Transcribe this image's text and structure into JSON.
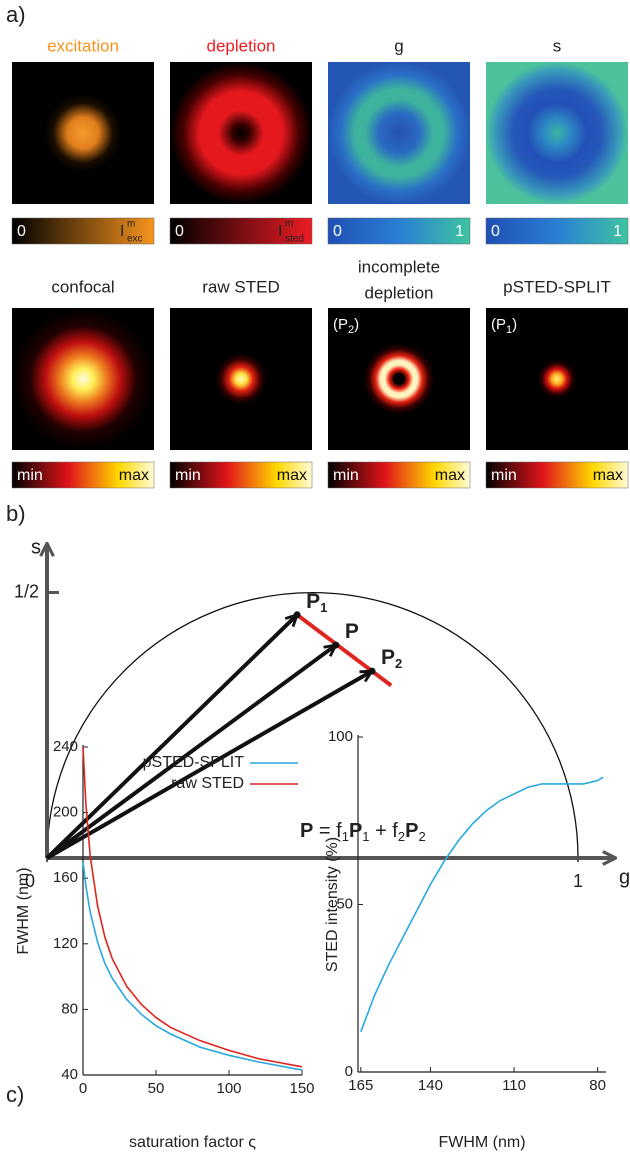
{
  "panel_a": {
    "label": "a)",
    "maps": [
      {
        "title": "excitation",
        "min": 0,
        "max": {
          "base": "I",
          "sup": "m",
          "sub": "exc"
        }
      },
      {
        "title": "depletion",
        "min": 0,
        "max": {
          "base": "I",
          "sup": "m",
          "sub": "sted"
        }
      },
      {
        "title": "g",
        "min": 0,
        "max": 1
      },
      {
        "title": "s",
        "min": 0,
        "max": 1
      }
    ],
    "images": [
      {
        "title": [
          "confocal"
        ],
        "min": "min",
        "max": "max"
      },
      {
        "title": [
          "raw STED"
        ],
        "min": "min",
        "max": "max"
      },
      {
        "title": [
          "incomplete",
          "depletion"
        ],
        "tag": {
          "open": "(P",
          "sub": "2",
          "close": ")"
        },
        "min": "min",
        "max": "max"
      },
      {
        "title": [
          "pSTED-SPLIT"
        ],
        "tag": {
          "open": "(P",
          "sub": "1",
          "close": ")"
        },
        "min": "min",
        "max": "max"
      }
    ]
  },
  "panel_b": {
    "label": "b)",
    "x_label": "g",
    "y_label": "s",
    "xticks": [
      0,
      1
    ],
    "yticks": [
      {
        "value": 0.5,
        "label": "1/2"
      }
    ],
    "points": [
      {
        "name": "P",
        "sub": "1",
        "g": 0.471,
        "s": 0.458
      },
      {
        "name": "P",
        "g": 0.544,
        "s": 0.401
      },
      {
        "name": "P",
        "sub": "2",
        "g": 0.612,
        "s": 0.352
      }
    ],
    "equation": [
      "P",
      " = f",
      "1",
      "P",
      "1",
      " + f",
      "2",
      "P",
      "2"
    ]
  },
  "panel_c": {
    "label": "c)"
  },
  "chart_data": [
    {
      "type": "line",
      "xlabel": "saturation factor ς",
      "ylabel": "FWHM (nm)",
      "x": [
        0,
        2,
        5,
        10,
        15,
        20,
        30,
        40,
        50,
        60,
        80,
        100,
        120,
        150
      ],
      "series": [
        {
          "name": "pSTED-SPLIT",
          "color": "#29a8e0",
          "values": [
            170,
            155,
            139,
            121,
            108,
            99,
            86,
            77,
            70,
            65,
            57,
            52,
            48,
            43
          ]
        },
        {
          "name": "raw STED",
          "color": "#e0241f",
          "values": [
            240,
            205,
            173,
            143,
            124,
            111,
            94,
            83,
            75,
            69,
            61,
            55,
            50,
            45
          ]
        }
      ],
      "xlim": [
        0,
        150
      ],
      "xticks": [
        0,
        50,
        100,
        150
      ],
      "ylim": [
        40,
        240
      ],
      "yticks": [
        40,
        80,
        120,
        160,
        200,
        240
      ],
      "legend": "upper right"
    },
    {
      "type": "line",
      "xlabel": "FWHM (nm)",
      "ylabel": "STED intensity (%)",
      "x": [
        165,
        160,
        155,
        150,
        145,
        140,
        135,
        130,
        125,
        120,
        115,
        110,
        105,
        100,
        95,
        90,
        85,
        80,
        78
      ],
      "series": [
        {
          "color": "#29a8e0",
          "values": [
            12,
            23,
            32,
            40,
            48,
            56,
            63,
            69,
            74,
            78,
            81,
            83,
            85,
            86,
            86,
            86,
            86,
            87,
            88
          ]
        }
      ],
      "xlim": [
        166,
        77
      ],
      "xticks": [
        165,
        140,
        110,
        80
      ],
      "ylim": [
        0,
        100
      ],
      "yticks": [
        0,
        50,
        100
      ]
    }
  ]
}
